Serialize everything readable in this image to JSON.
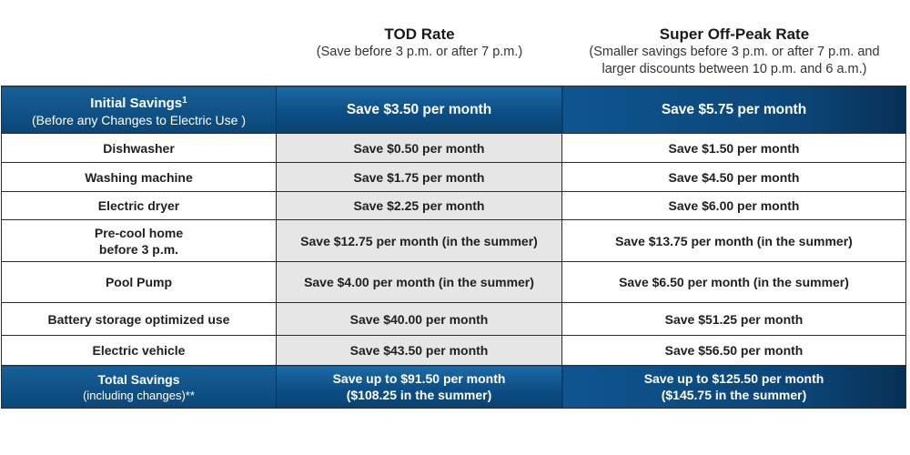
{
  "columns": {
    "tod": {
      "title": "TOD Rate",
      "subtitle": "(Save before 3 p.m. or after 7 p.m.)"
    },
    "super_off_peak": {
      "title": "Super Off-Peak Rate",
      "subtitle_line1": "(Smaller savings before 3 p.m. or after 7 p.m. and",
      "subtitle_line2": "larger discounts between 10 p.m. and 6 a.m.)"
    }
  },
  "initial": {
    "label": "Initial Savings",
    "footnote": "1",
    "sublabel": "(Before any Changes to Electric Use )",
    "tod": "Save $3.50 per month",
    "super_off_peak": "Save $5.75 per month"
  },
  "rows": [
    {
      "label": "Dishwasher",
      "tod": "Save $0.50 per month",
      "super_off_peak": "Save $1.50 per month"
    },
    {
      "label": "Washing machine",
      "tod": "Save $1.75 per month",
      "super_off_peak": "Save $4.50 per month"
    },
    {
      "label": "Electric dryer",
      "tod": "Save $2.25 per month",
      "super_off_peak": "Save $6.00 per month"
    },
    {
      "label_line1": "Pre-cool home",
      "label_line2": "before 3 p.m.",
      "tod": "Save $12.75 per month (in the summer)",
      "super_off_peak": "Save $13.75 per month (in the summer)"
    },
    {
      "label": "Pool Pump",
      "tod": "Save $4.00 per month (in the summer)",
      "super_off_peak": "Save $6.50 per month (in the summer)"
    },
    {
      "label": "Battery storage optimized use",
      "tod": "Save $40.00 per month",
      "super_off_peak": "Save $51.25 per month"
    },
    {
      "label": "Electric vehicle",
      "tod": "Save $43.50 per month",
      "super_off_peak": "Save $56.50 per month"
    }
  ],
  "total": {
    "label": "Total Savings",
    "sublabel": "(including changes)**",
    "tod_line1": "Save up to $91.50 per month",
    "tod_line2": "($108.25 in the summer)",
    "super_off_peak_line1": "Save up to $125.50 per month",
    "super_off_peak_line2": "($145.75 in the summer)"
  }
}
